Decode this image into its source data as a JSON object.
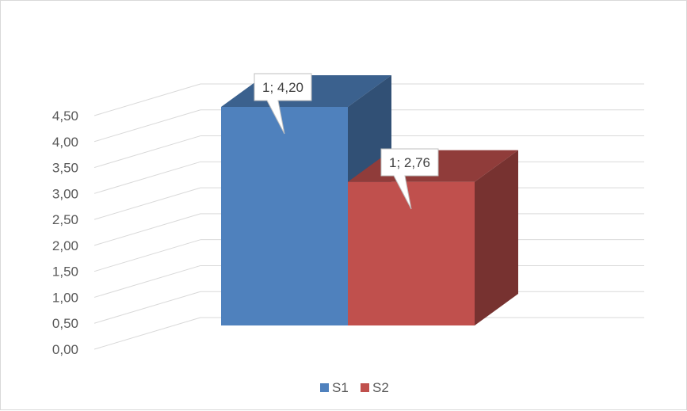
{
  "chart_data": {
    "type": "bar",
    "style": "3d-clustered-column",
    "categories": [
      "1"
    ],
    "series": [
      {
        "name": "S1",
        "values": [
          4.2
        ],
        "color": "#4F81BD",
        "data_label": "1; 4,20"
      },
      {
        "name": "S2",
        "values": [
          2.76
        ],
        "color": "#C0504D",
        "data_label": "1; 2,76"
      }
    ],
    "ylim": [
      0,
      4.5
    ],
    "y_ticks": [
      "0,00",
      "0,50",
      "1,00",
      "1,50",
      "2,00",
      "2,50",
      "3,00",
      "3,50",
      "4,00",
      "4,50"
    ],
    "grid": true,
    "legend": "bottom",
    "title": "",
    "xlabel": "",
    "ylabel": ""
  }
}
